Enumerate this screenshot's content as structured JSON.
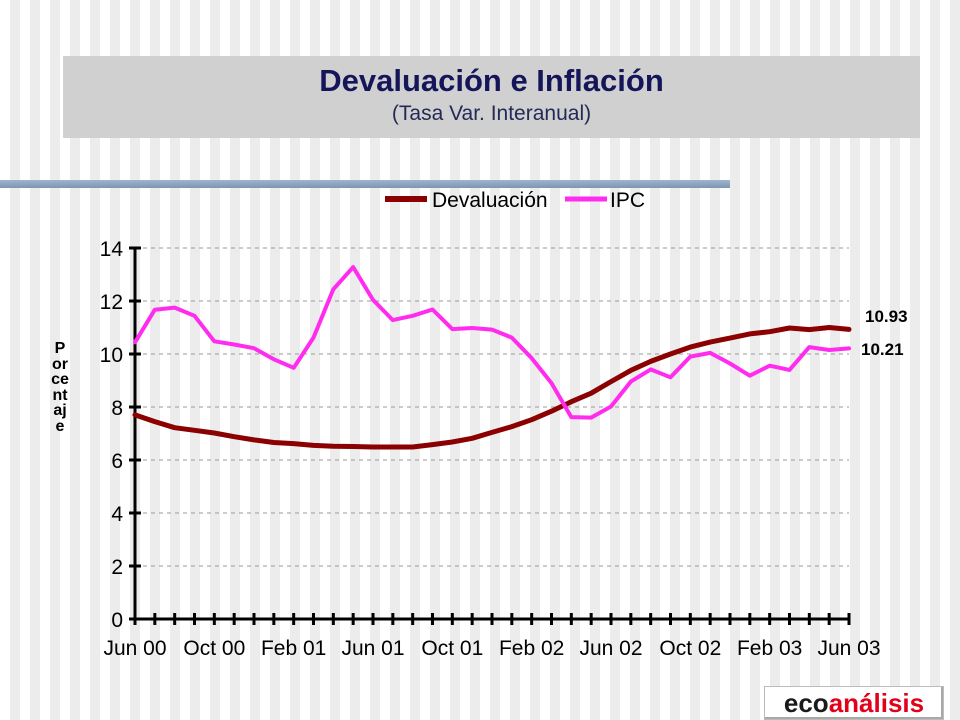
{
  "header": {
    "title": "Devaluación e Inflación",
    "subtitle": "(Tasa Var. Interanual)"
  },
  "logo": {
    "part1": "eco",
    "part2": "análisis"
  },
  "colors": {
    "devaluacion": "#8b0000",
    "ipc": "#ff2cf0",
    "title_bg": "#d0d0d0",
    "title_text": "#15155a",
    "accent_bar": "#8fa6c3"
  },
  "chart_data": {
    "type": "line",
    "title": "",
    "xlabel": "",
    "ylabel": "Porcentaje",
    "ylim": [
      0,
      14
    ],
    "yticks": [
      0,
      2,
      4,
      6,
      8,
      10,
      12,
      14
    ],
    "grid": "horizontal-dashed",
    "legend": "top",
    "x": [
      "Jun 00",
      "Jul 00",
      "Aug 00",
      "Sep 00",
      "Oct 00",
      "Nov 00",
      "Dec 00",
      "Jan 01",
      "Feb 01",
      "Mar 01",
      "Apr 01",
      "May 01",
      "Jun 01",
      "Jul 01",
      "Aug 01",
      "Sep 01",
      "Oct 01",
      "Nov 01",
      "Dec 01",
      "Jan 02",
      "Feb 02",
      "Mar 02",
      "Apr 02",
      "May 02",
      "Jun 02",
      "Jul 02",
      "Aug 02",
      "Sep 02",
      "Oct 02",
      "Nov 02",
      "Dec 02",
      "Jan 03",
      "Feb 03",
      "Mar 03",
      "Apr 03",
      "May 03",
      "Jun 03"
    ],
    "xtick_labels": [
      "Jun 00",
      "Oct 00",
      "Feb 01",
      "Jun 01",
      "Oct 01",
      "Feb 02",
      "Jun 02",
      "Oct 02",
      "Feb 03",
      "Jun 03"
    ],
    "xtick_label_every": 4,
    "series": [
      {
        "name": "Devaluación",
        "values": [
          7.7,
          7.45,
          7.22,
          7.12,
          7.02,
          6.88,
          6.76,
          6.66,
          6.62,
          6.55,
          6.52,
          6.51,
          6.49,
          6.49,
          6.49,
          6.58,
          6.68,
          6.82,
          7.04,
          7.26,
          7.52,
          7.84,
          8.2,
          8.52,
          8.96,
          9.38,
          9.72,
          10.0,
          10.26,
          10.45,
          10.6,
          10.76,
          10.84,
          10.98,
          10.92,
          11.0,
          10.93
        ],
        "end_label": "10.93"
      },
      {
        "name": "IPC",
        "values": [
          10.44,
          11.67,
          11.75,
          11.44,
          10.48,
          10.36,
          10.22,
          9.8,
          9.48,
          10.62,
          12.44,
          13.28,
          12.04,
          11.28,
          11.44,
          11.68,
          10.94,
          10.98,
          10.92,
          10.62,
          9.84,
          8.9,
          7.62,
          7.6,
          8.02,
          8.96,
          9.42,
          9.12,
          9.9,
          10.04,
          9.64,
          9.18,
          9.56,
          9.4,
          10.26,
          10.15,
          10.21
        ],
        "end_label": "10.21"
      }
    ]
  }
}
